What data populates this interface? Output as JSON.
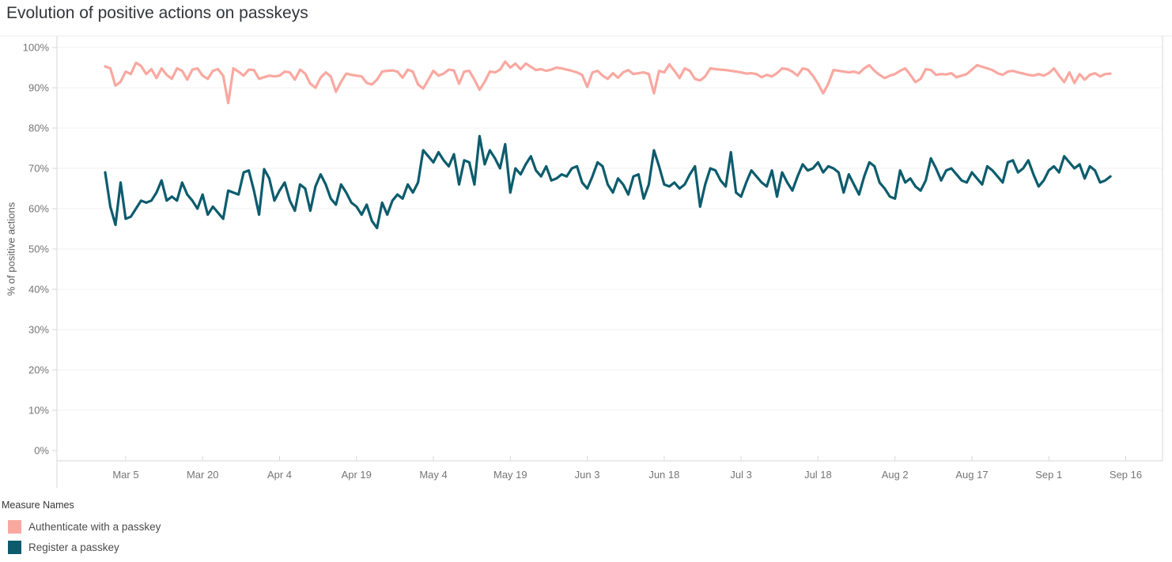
{
  "window": {
    "title": "Evolution of positive actions on passkeys"
  },
  "chart_data": {
    "type": "line",
    "title": "Evolution of positive actions on passkeys",
    "xlabel": "",
    "ylabel": "% of positive actions",
    "ylim": [
      0,
      100
    ],
    "grid": true,
    "x_unit": "daily",
    "x_start_label": "Mar 1",
    "x_end_label": "Sep 13",
    "y_ticks": [
      {
        "label": "0%",
        "value": 0
      },
      {
        "label": "10%",
        "value": 10
      },
      {
        "label": "20%",
        "value": 20
      },
      {
        "label": "30%",
        "value": 30
      },
      {
        "label": "40%",
        "value": 40
      },
      {
        "label": "50%",
        "value": 50
      },
      {
        "label": "60%",
        "value": 60
      },
      {
        "label": "70%",
        "value": 70
      },
      {
        "label": "80%",
        "value": 80
      },
      {
        "label": "90%",
        "value": 90
      },
      {
        "label": "100%",
        "value": 100
      }
    ],
    "x_ticks": [
      {
        "label": "Mar 5",
        "day": 4
      },
      {
        "label": "Mar 20",
        "day": 19
      },
      {
        "label": "Apr 4",
        "day": 34
      },
      {
        "label": "Apr 19",
        "day": 49
      },
      {
        "label": "May 4",
        "day": 64
      },
      {
        "label": "May 19",
        "day": 79
      },
      {
        "label": "Jun 3",
        "day": 94
      },
      {
        "label": "Jun 18",
        "day": 109
      },
      {
        "label": "Jul 3",
        "day": 124
      },
      {
        "label": "Jul 18",
        "day": 139
      },
      {
        "label": "Aug 2",
        "day": 154
      },
      {
        "label": "Aug 17",
        "day": 169
      },
      {
        "label": "Sep 1",
        "day": 184
      },
      {
        "label": "Sep 16",
        "day": 199
      }
    ],
    "legend": {
      "title": "Measure Names",
      "position": "bottom-left"
    },
    "series": [
      {
        "id": "authenticate",
        "name": "Authenticate with a passkey",
        "color": "#f9a8a0",
        "values": [
          95.3,
          94.8,
          90.5,
          91.5,
          94.0,
          93.4,
          96.2,
          95.4,
          93.4,
          94.6,
          92.4,
          94.8,
          93.2,
          92.2,
          94.8,
          94.2,
          92.0,
          94.5,
          94.8,
          93.0,
          92.2,
          94.2,
          94.6,
          93.0,
          86.2,
          94.8,
          94.0,
          93.0,
          94.5,
          94.4,
          92.2,
          92.6,
          93.0,
          92.8,
          93.0,
          94.0,
          93.8,
          92.0,
          94.5,
          93.5,
          91.0,
          90.0,
          92.5,
          93.8,
          92.8,
          89.0,
          91.5,
          93.5,
          93.2,
          93.0,
          92.8,
          91.2,
          90.8,
          92.0,
          94.0,
          94.2,
          94.3,
          94.0,
          92.5,
          94.5,
          94.0,
          90.8,
          89.8,
          92.0,
          94.2,
          93.0,
          93.5,
          94.5,
          94.3,
          91.0,
          94.0,
          94.2,
          92.0,
          89.5,
          91.5,
          94.0,
          93.8,
          94.5,
          96.5,
          95.0,
          96.0,
          94.6,
          96.0,
          95.2,
          94.4,
          94.6,
          94.2,
          94.5,
          95.0,
          94.8,
          94.5,
          94.2,
          93.8,
          93.2,
          90.2,
          93.8,
          94.2,
          93.0,
          92.2,
          93.6,
          92.5,
          93.8,
          94.4,
          93.4,
          93.6,
          93.8,
          93.4,
          88.6,
          94.2,
          93.8,
          95.8,
          94.2,
          92.4,
          94.8,
          94.2,
          92.2,
          91.8,
          92.8,
          94.8,
          94.6,
          94.5,
          94.4,
          94.2,
          94.0,
          93.8,
          93.5,
          93.6,
          93.4,
          92.6,
          93.2,
          92.8,
          93.6,
          94.8,
          94.6,
          94.0,
          93.0,
          94.8,
          94.5,
          93.0,
          91.0,
          88.6,
          91.0,
          94.4,
          94.2,
          94.0,
          93.8,
          94.0,
          93.6,
          94.8,
          95.6,
          94.2,
          93.2,
          92.4,
          93.0,
          93.4,
          94.2,
          94.8,
          93.2,
          91.4,
          92.2,
          94.6,
          94.4,
          93.2,
          93.4,
          93.3,
          93.6,
          92.6,
          93.0,
          93.4,
          94.5,
          95.6,
          95.2,
          94.8,
          94.4,
          93.6,
          93.2,
          94.0,
          94.2,
          93.8,
          93.5,
          93.2,
          93.0,
          93.4,
          93.0,
          93.6,
          94.8,
          93.0,
          91.4,
          93.8,
          91.2,
          93.4,
          92.0,
          93.2,
          93.6,
          92.8,
          93.4,
          93.5
        ]
      },
      {
        "id": "register",
        "name": "Register a passkey",
        "color": "#0c5c6d",
        "values": [
          69.0,
          60.5,
          56.0,
          66.5,
          57.5,
          58.0,
          60.0,
          62.0,
          61.5,
          62.0,
          64.0,
          67.0,
          62.0,
          63.0,
          62.0,
          66.5,
          63.5,
          62.0,
          60.0,
          63.5,
          58.5,
          60.5,
          59.0,
          57.5,
          64.5,
          64.0,
          63.5,
          69.0,
          69.5,
          64.5,
          58.5,
          69.8,
          67.5,
          62.0,
          64.5,
          66.5,
          62.0,
          59.5,
          66.0,
          65.0,
          59.5,
          65.5,
          68.5,
          66.0,
          62.5,
          61.0,
          66.0,
          64.0,
          61.5,
          60.5,
          58.5,
          61.0,
          57.0,
          55.2,
          61.5,
          58.5,
          62.0,
          63.5,
          62.5,
          66.0,
          64.0,
          66.5,
          74.5,
          73.0,
          71.5,
          74.0,
          72.0,
          70.5,
          73.5,
          66.0,
          72.0,
          71.5,
          66.0,
          78.0,
          71.0,
          74.5,
          72.5,
          70.0,
          76.0,
          64.0,
          70.0,
          68.5,
          71.0,
          73.0,
          69.5,
          68.0,
          70.5,
          67.0,
          67.5,
          68.5,
          68.0,
          70.0,
          70.5,
          66.5,
          65.0,
          68.0,
          71.5,
          70.5,
          66.0,
          64.0,
          67.5,
          66.0,
          63.5,
          68.0,
          68.5,
          62.5,
          66.0,
          74.5,
          70.5,
          66.0,
          65.5,
          66.5,
          65.0,
          66.0,
          68.5,
          70.5,
          60.5,
          66.0,
          70.0,
          69.5,
          67.0,
          65.5,
          74.0,
          64.0,
          63.0,
          66.5,
          69.5,
          68.0,
          66.5,
          65.5,
          69.5,
          63.0,
          69.0,
          66.5,
          64.5,
          68.0,
          71.0,
          69.5,
          70.0,
          71.5,
          69.0,
          70.5,
          70.0,
          69.0,
          64.0,
          68.5,
          66.0,
          63.5,
          68.0,
          71.5,
          70.5,
          66.5,
          65.0,
          63.0,
          62.5,
          69.5,
          66.5,
          67.5,
          65.5,
          64.5,
          67.0,
          72.5,
          70.0,
          67.0,
          69.5,
          70.0,
          68.5,
          67.0,
          66.5,
          69.0,
          67.5,
          66.0,
          70.5,
          69.5,
          68.0,
          66.5,
          71.5,
          72.0,
          69.0,
          70.0,
          72.0,
          68.5,
          65.5,
          67.0,
          69.5,
          70.5,
          69.0,
          73.0,
          71.5,
          70.0,
          71.0,
          67.5,
          70.5,
          69.5,
          66.5,
          67.0,
          68.0
        ]
      }
    ]
  }
}
